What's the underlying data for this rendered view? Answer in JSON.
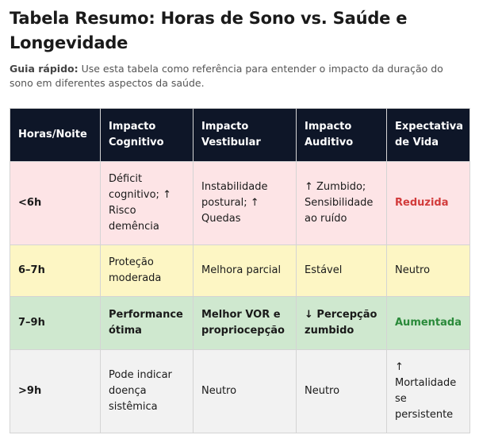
{
  "title": "Tabela Resumo: Horas de Sono vs. Saúde e Longevidade",
  "intro": {
    "label": "Guia rápido:",
    "text": " Use esta tabela como referência para entender o impacto da duração do sono em diferentes aspectos da saúde."
  },
  "table": {
    "headers": [
      "Horas/Noite",
      "Impacto Cognitivo",
      "Impacto Vestibular",
      "Impacto Auditivo",
      "Expectativa de Vida"
    ],
    "rows": [
      [
        "<6h",
        "Déficit cognitivo; ↑ Risco demência",
        "Instabilidade postural; ↑ Quedas",
        "↑ Zumbido; Sensibilidade ao ruído",
        "Reduzida"
      ],
      [
        "6–7h",
        "Proteção moderada",
        "Melhora parcial",
        "Estável",
        "Neutro"
      ],
      [
        "7–9h",
        "Performance ótima",
        "Melhor VOR e propriocepção",
        "↓ Percepção zumbido",
        "Aumentada"
      ],
      [
        ">9h",
        "Pode indicar doença sistêmica",
        "Neutro",
        "Neutro",
        "↑ Mortalidade se persistente"
      ]
    ]
  },
  "colors": {
    "header_bg": "#0e1628",
    "row_bad": "#fde4e6",
    "row_mid": "#fdf6c4",
    "row_good": "#cfe8cf",
    "row_neutral": "#f2f2f2",
    "text_reduced": "#d23b3b",
    "text_increased": "#2a8a3a"
  }
}
